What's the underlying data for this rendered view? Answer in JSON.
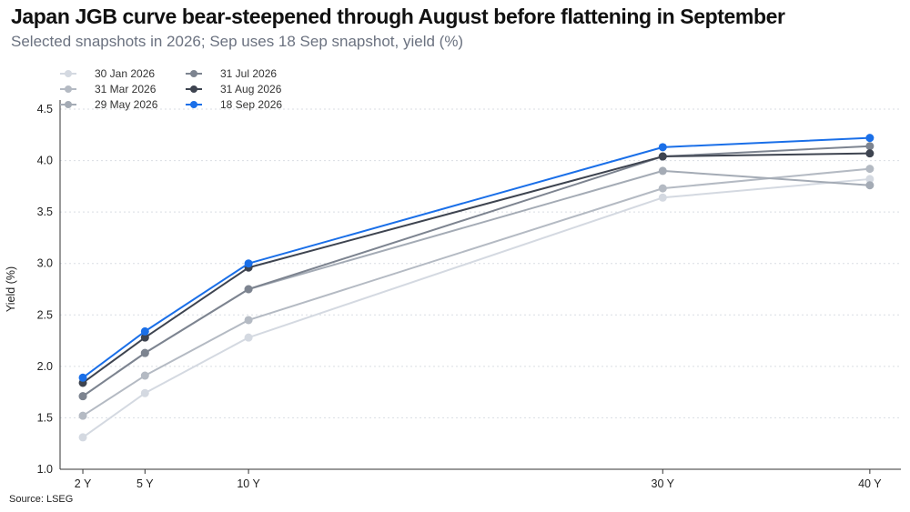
{
  "header": {
    "title": "Japan JGB curve bear-steepened through August before flattening in September",
    "subtitle": "Selected snapshots in 2026; Sep uses 18 Sep snapshot, yield (%)"
  },
  "footer": {
    "source": "Source: LSEG"
  },
  "chart_data": {
    "type": "line",
    "title": "Japan JGB curve bear-steepened through August before flattening in September",
    "subtitle": "Selected snapshots in 2026; Sep uses 18 Sep snapshot, yield (%)",
    "xlabel": "",
    "ylabel": "Yield (%)",
    "categories": [
      "2 Y",
      "5 Y",
      "10 Y",
      "30 Y",
      "40 Y"
    ],
    "x_years": [
      2,
      5,
      10,
      30,
      40
    ],
    "ylim": [
      1.0,
      4.5
    ],
    "yticks": [
      "1.0",
      "1.5",
      "2.0",
      "2.5",
      "3.0",
      "3.5",
      "4.0",
      "4.5"
    ],
    "grid": "horizontal dotted",
    "legend_position": "top-left",
    "series": [
      {
        "name": "30 Jan 2026",
        "color": "#d4d9e1",
        "values": [
          1.31,
          1.74,
          2.28,
          3.64,
          3.82
        ]
      },
      {
        "name": "31 Mar 2026",
        "color": "#b4bac3",
        "values": [
          1.52,
          1.91,
          2.45,
          3.73,
          3.92
        ]
      },
      {
        "name": "29 May 2026",
        "color": "#a4abb5",
        "values": [
          1.71,
          2.13,
          2.75,
          3.9,
          3.76
        ]
      },
      {
        "name": "31 Jul 2026",
        "color": "#7d8490",
        "values": [
          1.71,
          2.13,
          2.75,
          4.04,
          4.14
        ]
      },
      {
        "name": "31 Aug 2026",
        "color": "#3e4450",
        "values": [
          1.84,
          2.28,
          2.96,
          4.04,
          4.07
        ]
      },
      {
        "name": "18 Sep 2026",
        "color": "#1a6fe8",
        "values": [
          1.89,
          2.34,
          3.0,
          4.13,
          4.22
        ]
      }
    ]
  }
}
